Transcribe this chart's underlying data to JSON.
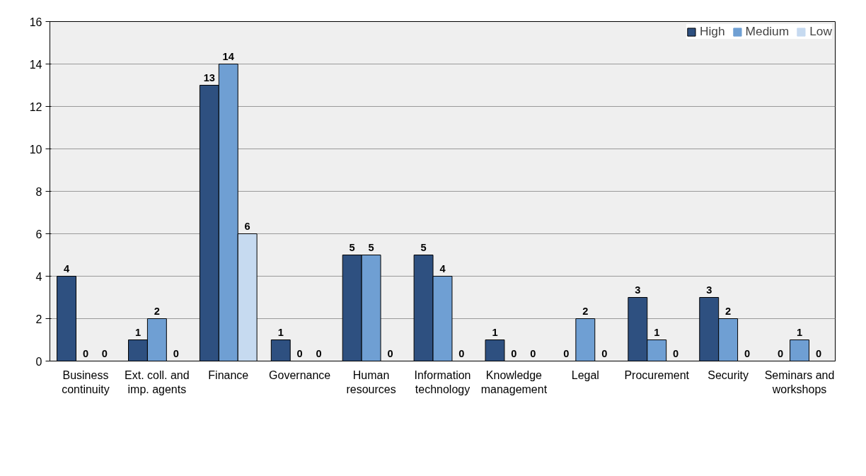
{
  "chart_data": {
    "type": "bar",
    "categories": [
      "Business continuity",
      "Ext. coll. and imp. agents",
      "Finance",
      "Governance",
      "Human resources",
      "Information technology",
      "Knowledge management",
      "Legal",
      "Procurement",
      "Security",
      "Seminars and workshops"
    ],
    "series": [
      {
        "name": "High",
        "color": "#2e5080",
        "values": [
          4,
          1,
          13,
          1,
          5,
          5,
          1,
          0,
          3,
          3,
          0
        ]
      },
      {
        "name": "Medium",
        "color": "#6f9fd3",
        "values": [
          0,
          2,
          14,
          0,
          5,
          4,
          0,
          2,
          1,
          2,
          1
        ]
      },
      {
        "name": "Low",
        "color": "#c6daf0",
        "values": [
          0,
          0,
          6,
          0,
          0,
          0,
          0,
          0,
          0,
          0,
          0
        ]
      }
    ],
    "ylim": [
      0,
      16
    ],
    "yticks": [
      0,
      2,
      4,
      6,
      8,
      10,
      12,
      14,
      16
    ],
    "grid": "y",
    "legend": "top right",
    "data_labels": true
  }
}
